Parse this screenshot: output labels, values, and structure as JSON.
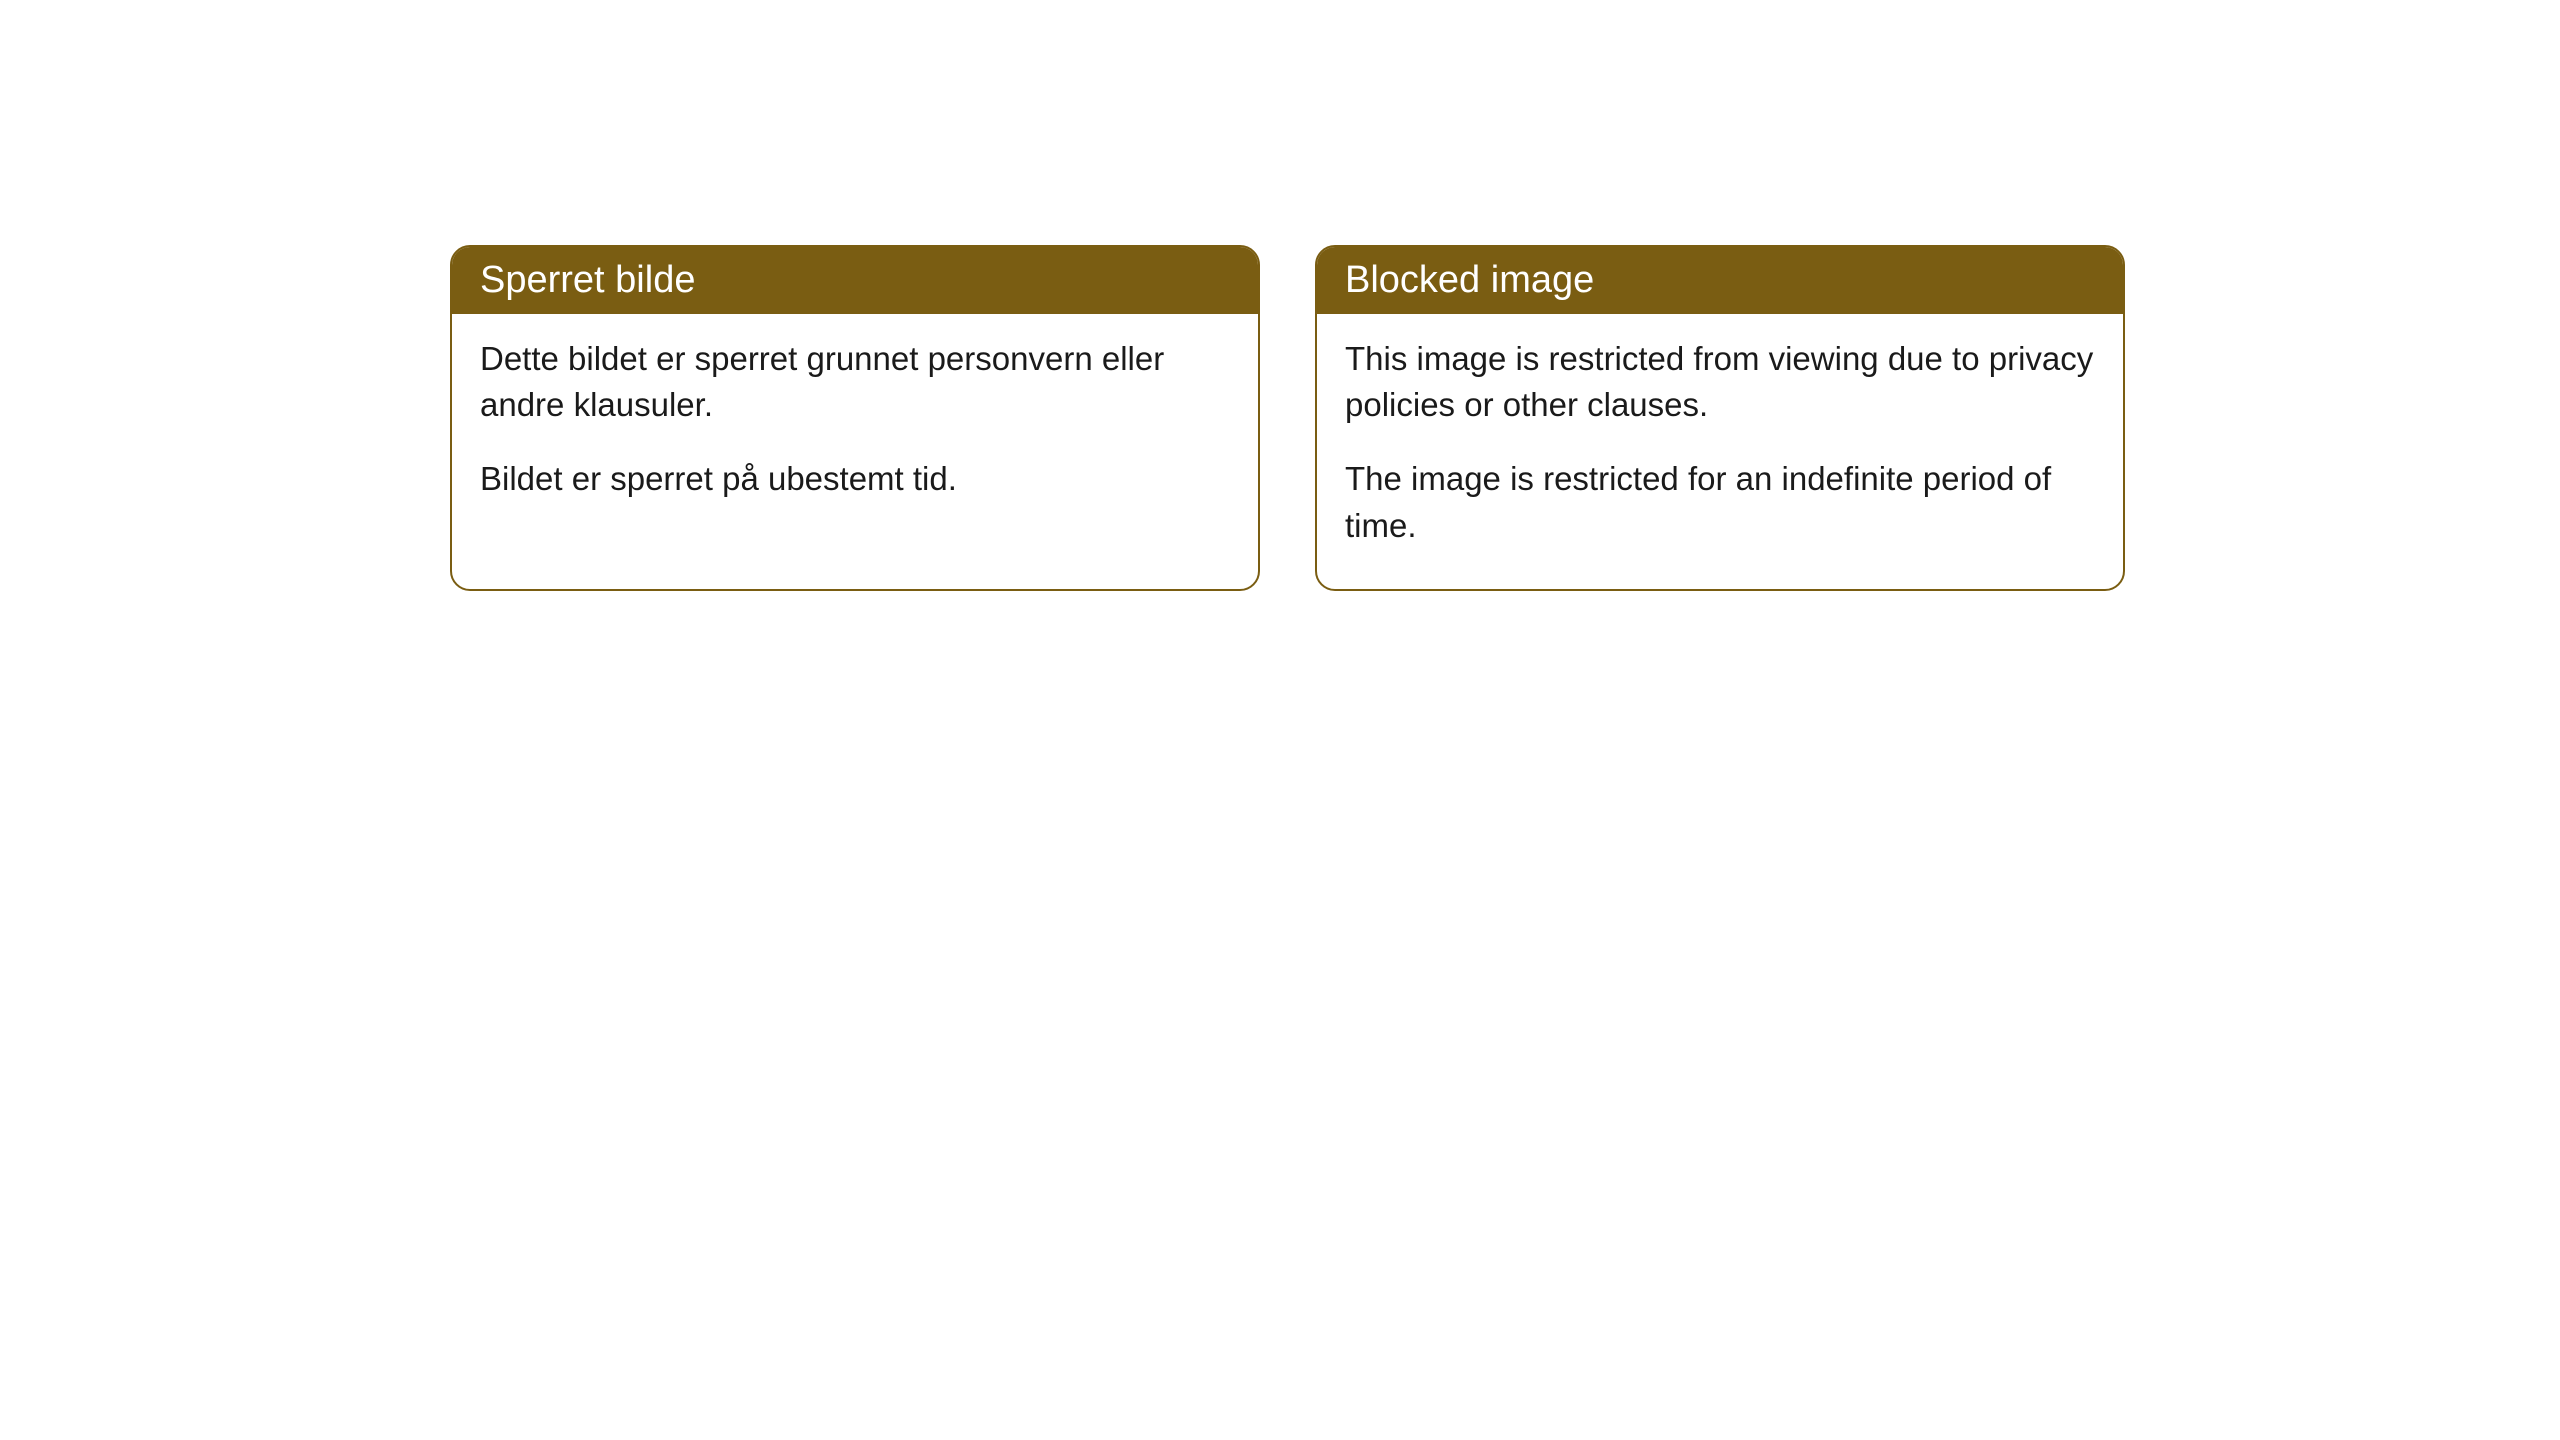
{
  "cards": [
    {
      "title": "Sperret bilde",
      "paragraph1": "Dette bildet er sperret grunnet personvern eller andre klausuler.",
      "paragraph2": "Bildet er sperret på ubestemt tid."
    },
    {
      "title": "Blocked image",
      "paragraph1": "This image is restricted from viewing due to privacy policies or other clauses.",
      "paragraph2": "The image is restricted for an indefinite period of time."
    }
  ],
  "styling": {
    "header_bg_color": "#7a5d12",
    "header_text_color": "#ffffff",
    "border_color": "#7a5d12",
    "body_bg_color": "#ffffff",
    "body_text_color": "#1a1a1a",
    "border_radius": "20px",
    "title_fontsize": 38,
    "body_fontsize": 33
  }
}
